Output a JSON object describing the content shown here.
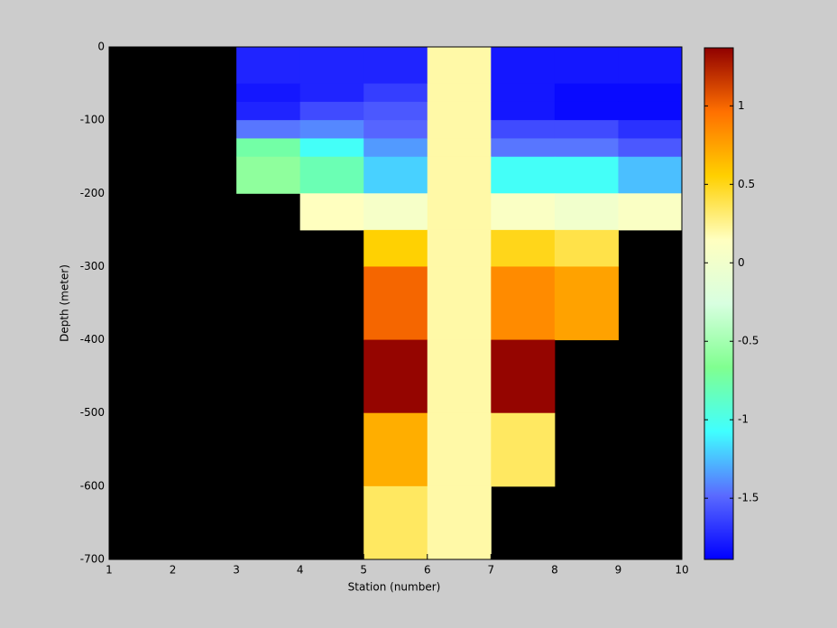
{
  "chart_data": {
    "type": "heatmap",
    "xlabel": "Station (number)",
    "ylabel": "Depth (meter)",
    "x": [
      1,
      2,
      3,
      4,
      5,
      6,
      7,
      8,
      9,
      10
    ],
    "y": [
      0,
      -50,
      -75,
      -100,
      -125,
      -150,
      -200,
      -250,
      -300,
      -400,
      -500,
      -600,
      -700
    ],
    "z": [
      [
        null,
        null,
        -1.75,
        -1.75,
        -1.75,
        0.2,
        -1.8,
        -1.8,
        -1.8
      ],
      [
        null,
        null,
        -1.8,
        -1.75,
        -1.65,
        0.2,
        -1.8,
        -1.85,
        -1.85
      ],
      [
        null,
        null,
        -1.75,
        -1.6,
        -1.55,
        0.2,
        -1.8,
        -1.85,
        -1.85
      ],
      [
        null,
        null,
        -1.45,
        -1.4,
        -1.5,
        0.2,
        -1.6,
        -1.6,
        -1.7
      ],
      [
        null,
        null,
        -0.75,
        -1.05,
        -1.35,
        0.2,
        -1.45,
        -1.45,
        -1.55
      ],
      [
        null,
        null,
        -0.6,
        -0.8,
        -1.2,
        0.2,
        -1.05,
        -1.05,
        -1.25
      ],
      [
        null,
        null,
        null,
        0.15,
        0.05,
        0.2,
        0.1,
        0.0,
        0.1
      ],
      [
        null,
        null,
        null,
        null,
        0.55,
        0.2,
        0.5,
        0.4,
        null
      ],
      [
        null,
        null,
        null,
        null,
        1.0,
        0.2,
        0.85,
        0.75,
        null
      ],
      [
        null,
        null,
        null,
        null,
        1.35,
        0.2,
        1.35,
        null,
        null
      ],
      [
        null,
        null,
        null,
        null,
        0.7,
        0.2,
        0.35,
        null,
        null
      ],
      [
        null,
        null,
        null,
        null,
        0.35,
        0.2,
        null,
        null,
        null
      ]
    ],
    "xlim": [
      1,
      10
    ],
    "xticks": [
      1,
      2,
      3,
      4,
      5,
      6,
      7,
      8,
      9,
      10
    ],
    "ylim": [
      -700,
      0
    ],
    "yticks": [
      0,
      -100,
      -200,
      -300,
      -400,
      -500,
      -600,
      -700
    ],
    "clim": [
      -1.89,
      1.37
    ],
    "cticks": [
      1,
      0.5,
      0,
      -0.5,
      -1,
      -1.5
    ],
    "colormap": [
      "#0000ff",
      "#5a6aff",
      "#40ffff",
      "#80ff90",
      "#d8ffe0",
      "#ffffc0",
      "#ffd000",
      "#ff7000",
      "#900000"
    ],
    "nan_color": "#000000"
  }
}
